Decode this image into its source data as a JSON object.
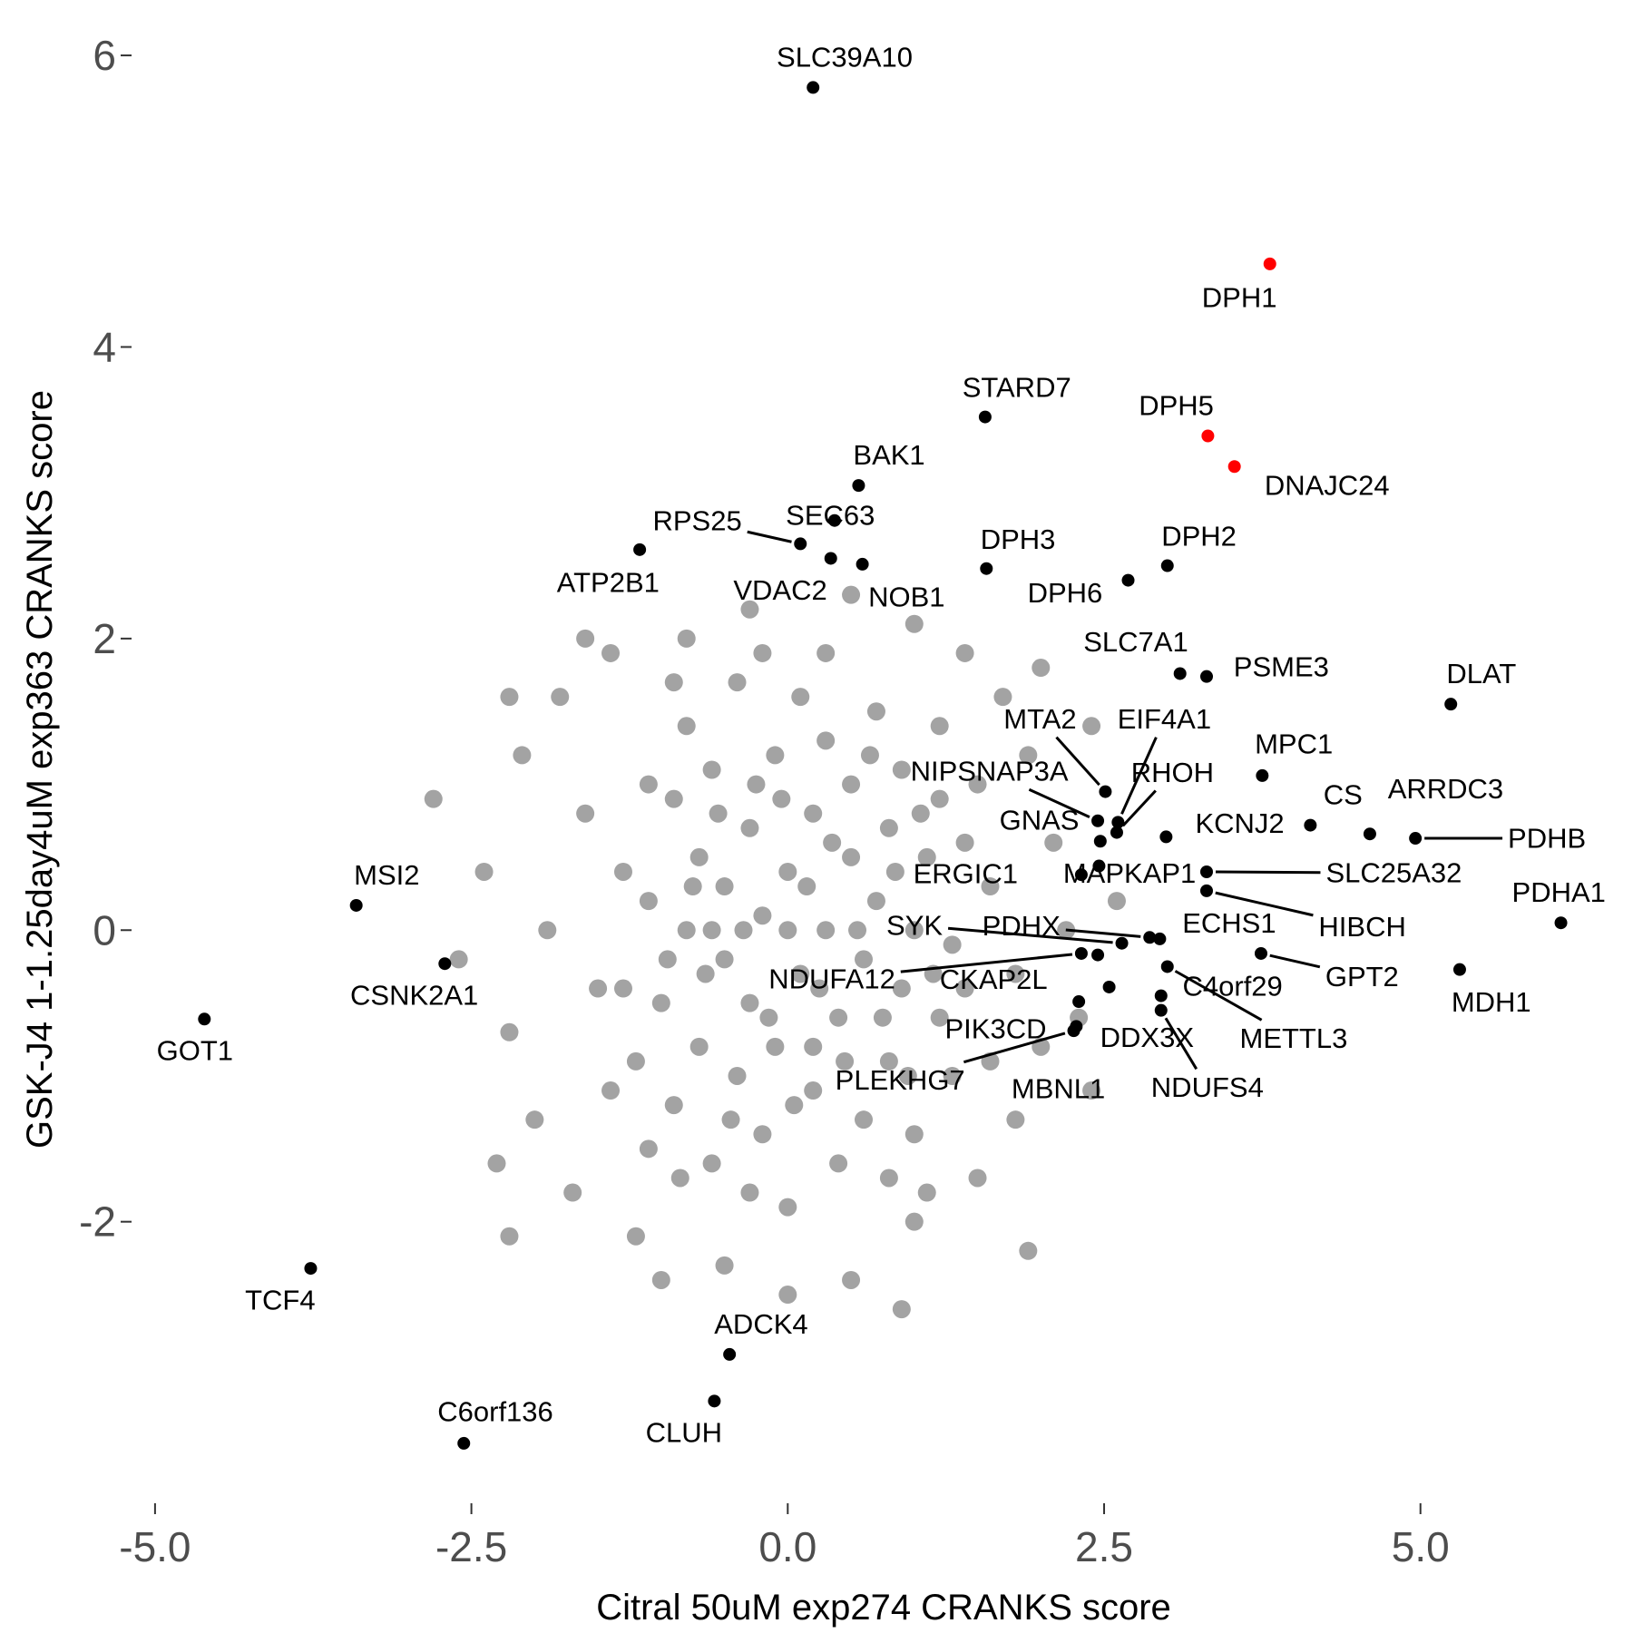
{
  "chart_data": {
    "type": "scatter",
    "xlabel": "Citral 50uM exp274 CRANKS score",
    "ylabel": "GSK-J4 1-1.25day4uM exp363 CRANKS score",
    "xlim": [
      -5.2,
      6.4
    ],
    "ylim": [
      -3.9,
      6.1
    ],
    "xticks": [
      {
        "value": -5,
        "label": "-5.0"
      },
      {
        "value": -2.5,
        "label": "-2.5"
      },
      {
        "value": 0,
        "label": "0.0"
      },
      {
        "value": 2.5,
        "label": "2.5"
      },
      {
        "value": 5,
        "label": "5.0"
      }
    ],
    "yticks": [
      -2,
      0,
      2,
      4,
      6
    ],
    "series": [
      {
        "color": "#a3a3a3",
        "x": [
          -1.1,
          -1.0,
          -0.9,
          -0.9,
          -0.8,
          -0.8,
          -0.7,
          -0.7,
          -0.6,
          -0.6,
          -0.5,
          -0.5,
          -0.4,
          -0.4,
          -0.3,
          -0.3,
          -0.2,
          -0.2,
          -0.1,
          -0.1,
          0.0,
          0.0,
          0.1,
          0.1,
          0.2,
          0.2,
          0.3,
          0.3,
          0.4,
          0.4,
          0.5,
          0.5,
          0.6,
          0.6,
          0.7,
          0.7,
          0.8,
          0.8,
          0.9,
          0.9,
          1.0,
          1.0,
          1.1,
          1.2,
          1.2,
          1.3,
          -1.2,
          -1.1,
          -0.95,
          -0.85,
          -0.75,
          -0.65,
          -0.55,
          -0.45,
          -0.35,
          -0.25,
          -0.15,
          -0.05,
          0.05,
          0.15,
          0.25,
          0.35,
          0.45,
          0.55,
          0.65,
          0.75,
          0.85,
          0.95,
          1.05,
          1.15,
          -0.6,
          0.0,
          0.2,
          -0.3,
          0.3,
          -0.2,
          0.8,
          -0.9,
          -2.4,
          -2.2,
          -2.1,
          -2.0,
          -1.9,
          -1.8,
          -1.7,
          -1.6,
          -1.5,
          -1.4,
          -1.4,
          -1.3,
          -2.6,
          -2.3,
          -1.6,
          -1.2,
          -0.5,
          0.0,
          0.5,
          1.0,
          1.5,
          1.8,
          2.0,
          2.2,
          2.1,
          1.9,
          1.7,
          1.4,
          1.0,
          0.5,
          -0.3,
          -0.8,
          1.6,
          1.6,
          1.5,
          1.8,
          2.3,
          2.4,
          2.0,
          -2.2,
          0.9,
          -1.0,
          1.4,
          1.4,
          -1.3,
          1.3,
          1.2,
          -1.1,
          1.1,
          2.6,
          2.4,
          1.9,
          -2.8,
          -2.2
        ],
        "y": [
          0.2,
          -0.5,
          0.9,
          -1.2,
          0.0,
          1.4,
          -0.8,
          0.5,
          -1.6,
          1.1,
          -0.2,
          0.3,
          -1.0,
          1.7,
          0.7,
          -0.5,
          -1.4,
          0.1,
          1.2,
          -0.8,
          0.4,
          -1.9,
          -0.3,
          1.6,
          0.8,
          -1.1,
          0.0,
          1.3,
          -0.6,
          -1.6,
          0.5,
          1.0,
          -0.2,
          -1.3,
          0.2,
          1.5,
          -0.9,
          0.7,
          -0.4,
          1.1,
          0.0,
          -1.4,
          0.5,
          -0.6,
          0.9,
          -0.1,
          -0.9,
          1.0,
          -0.2,
          -1.7,
          0.3,
          -0.3,
          0.8,
          -1.3,
          0.0,
          1.0,
          -0.6,
          0.9,
          -1.2,
          0.3,
          -0.4,
          0.6,
          -0.9,
          0.0,
          1.2,
          -0.6,
          0.4,
          -1.0,
          0.8,
          -0.3,
          0.0,
          0.0,
          -0.8,
          -1.8,
          1.9,
          1.9,
          -1.7,
          1.7,
          0.4,
          -0.7,
          1.2,
          -1.3,
          0.0,
          1.6,
          -1.8,
          0.8,
          -0.4,
          1.9,
          -1.1,
          0.4,
          -0.2,
          -1.6,
          2.0,
          -2.1,
          -2.3,
          -2.5,
          -2.4,
          -2.0,
          -1.7,
          -1.3,
          -0.8,
          0.0,
          0.6,
          1.2,
          1.6,
          1.9,
          2.1,
          2.3,
          2.2,
          2.0,
          -0.9,
          0.3,
          1.0,
          -0.3,
          -0.6,
          1.4,
          1.8,
          -2.1,
          -2.6,
          -2.4,
          -0.4,
          0.6,
          -0.4,
          -1.0,
          1.4,
          -1.5,
          -1.8,
          0.2,
          -1.1,
          -2.2,
          0.9,
          1.6
        ]
      },
      {
        "color": "#000000",
        "labels": [
          "SLC39A10",
          "STARD7",
          "BAK1",
          "SEC63",
          "RPS25",
          "ATP2B1",
          "VDAC2",
          "NOB1",
          "DPH3",
          "DPH2",
          "DPH6",
          "SLC7A1",
          "PSME3",
          "DLAT",
          "MPC1",
          "CS",
          "ARRDC3",
          "PDHB",
          "MTA2",
          "EIF4A1",
          "RHOH",
          "NIPSNAP3A",
          "GNAS",
          "KCNJ2",
          "ERGIC1",
          "MAPKAP1",
          "SLC25A32",
          "HIBCH",
          "ECHS1",
          "PDHA1",
          "SYK",
          "PDHX",
          "NDUFA12",
          "CKAP2L",
          "GPT2",
          "MDH1",
          "C4orf29",
          "METTL3",
          "DDX3X",
          "NDUFS4",
          "PIK3CD",
          "PLEKHG7",
          "MBNL1",
          "MSI2",
          "CSNK2A1",
          "GOT1",
          "TCF4",
          "ADCK4",
          "CLUH",
          "C6orf136"
        ],
        "x": [
          0.2,
          1.56,
          0.56,
          0.37,
          0.1,
          -1.17,
          0.34,
          0.59,
          1.57,
          3.0,
          2.69,
          3.1,
          3.31,
          5.24,
          3.75,
          4.13,
          4.6,
          4.96,
          2.51,
          2.61,
          2.6,
          2.45,
          2.47,
          2.99,
          2.32,
          2.46,
          3.31,
          3.31,
          2.94,
          6.11,
          2.64,
          2.86,
          2.32,
          2.45,
          3.74,
          5.31,
          2.95,
          3.0,
          2.54,
          2.95,
          2.3,
          2.26,
          2.28,
          -3.41,
          -2.71,
          -4.61,
          -3.77,
          -0.46,
          -0.58,
          -2.56
        ],
        "y": [
          5.78,
          3.52,
          3.05,
          2.81,
          2.65,
          2.61,
          2.55,
          2.51,
          2.48,
          2.5,
          2.4,
          1.76,
          1.74,
          1.55,
          1.06,
          0.72,
          0.66,
          0.63,
          0.95,
          0.74,
          0.67,
          0.75,
          0.61,
          0.64,
          0.38,
          0.44,
          0.4,
          0.27,
          -0.06,
          0.05,
          -0.09,
          -0.05,
          -0.16,
          -0.17,
          -0.16,
          -0.27,
          -0.45,
          -0.25,
          -0.39,
          -0.55,
          -0.49,
          -0.69,
          -0.66,
          0.17,
          -0.23,
          -0.61,
          -2.32,
          -2.91,
          -3.23,
          -3.52
        ]
      },
      {
        "color": "#ff0000",
        "labels": [
          "DPH1",
          "DPH5",
          "DNAJC24"
        ],
        "x": [
          3.81,
          3.32,
          3.53
        ],
        "y": [
          4.57,
          3.39,
          3.18
        ]
      }
    ]
  }
}
